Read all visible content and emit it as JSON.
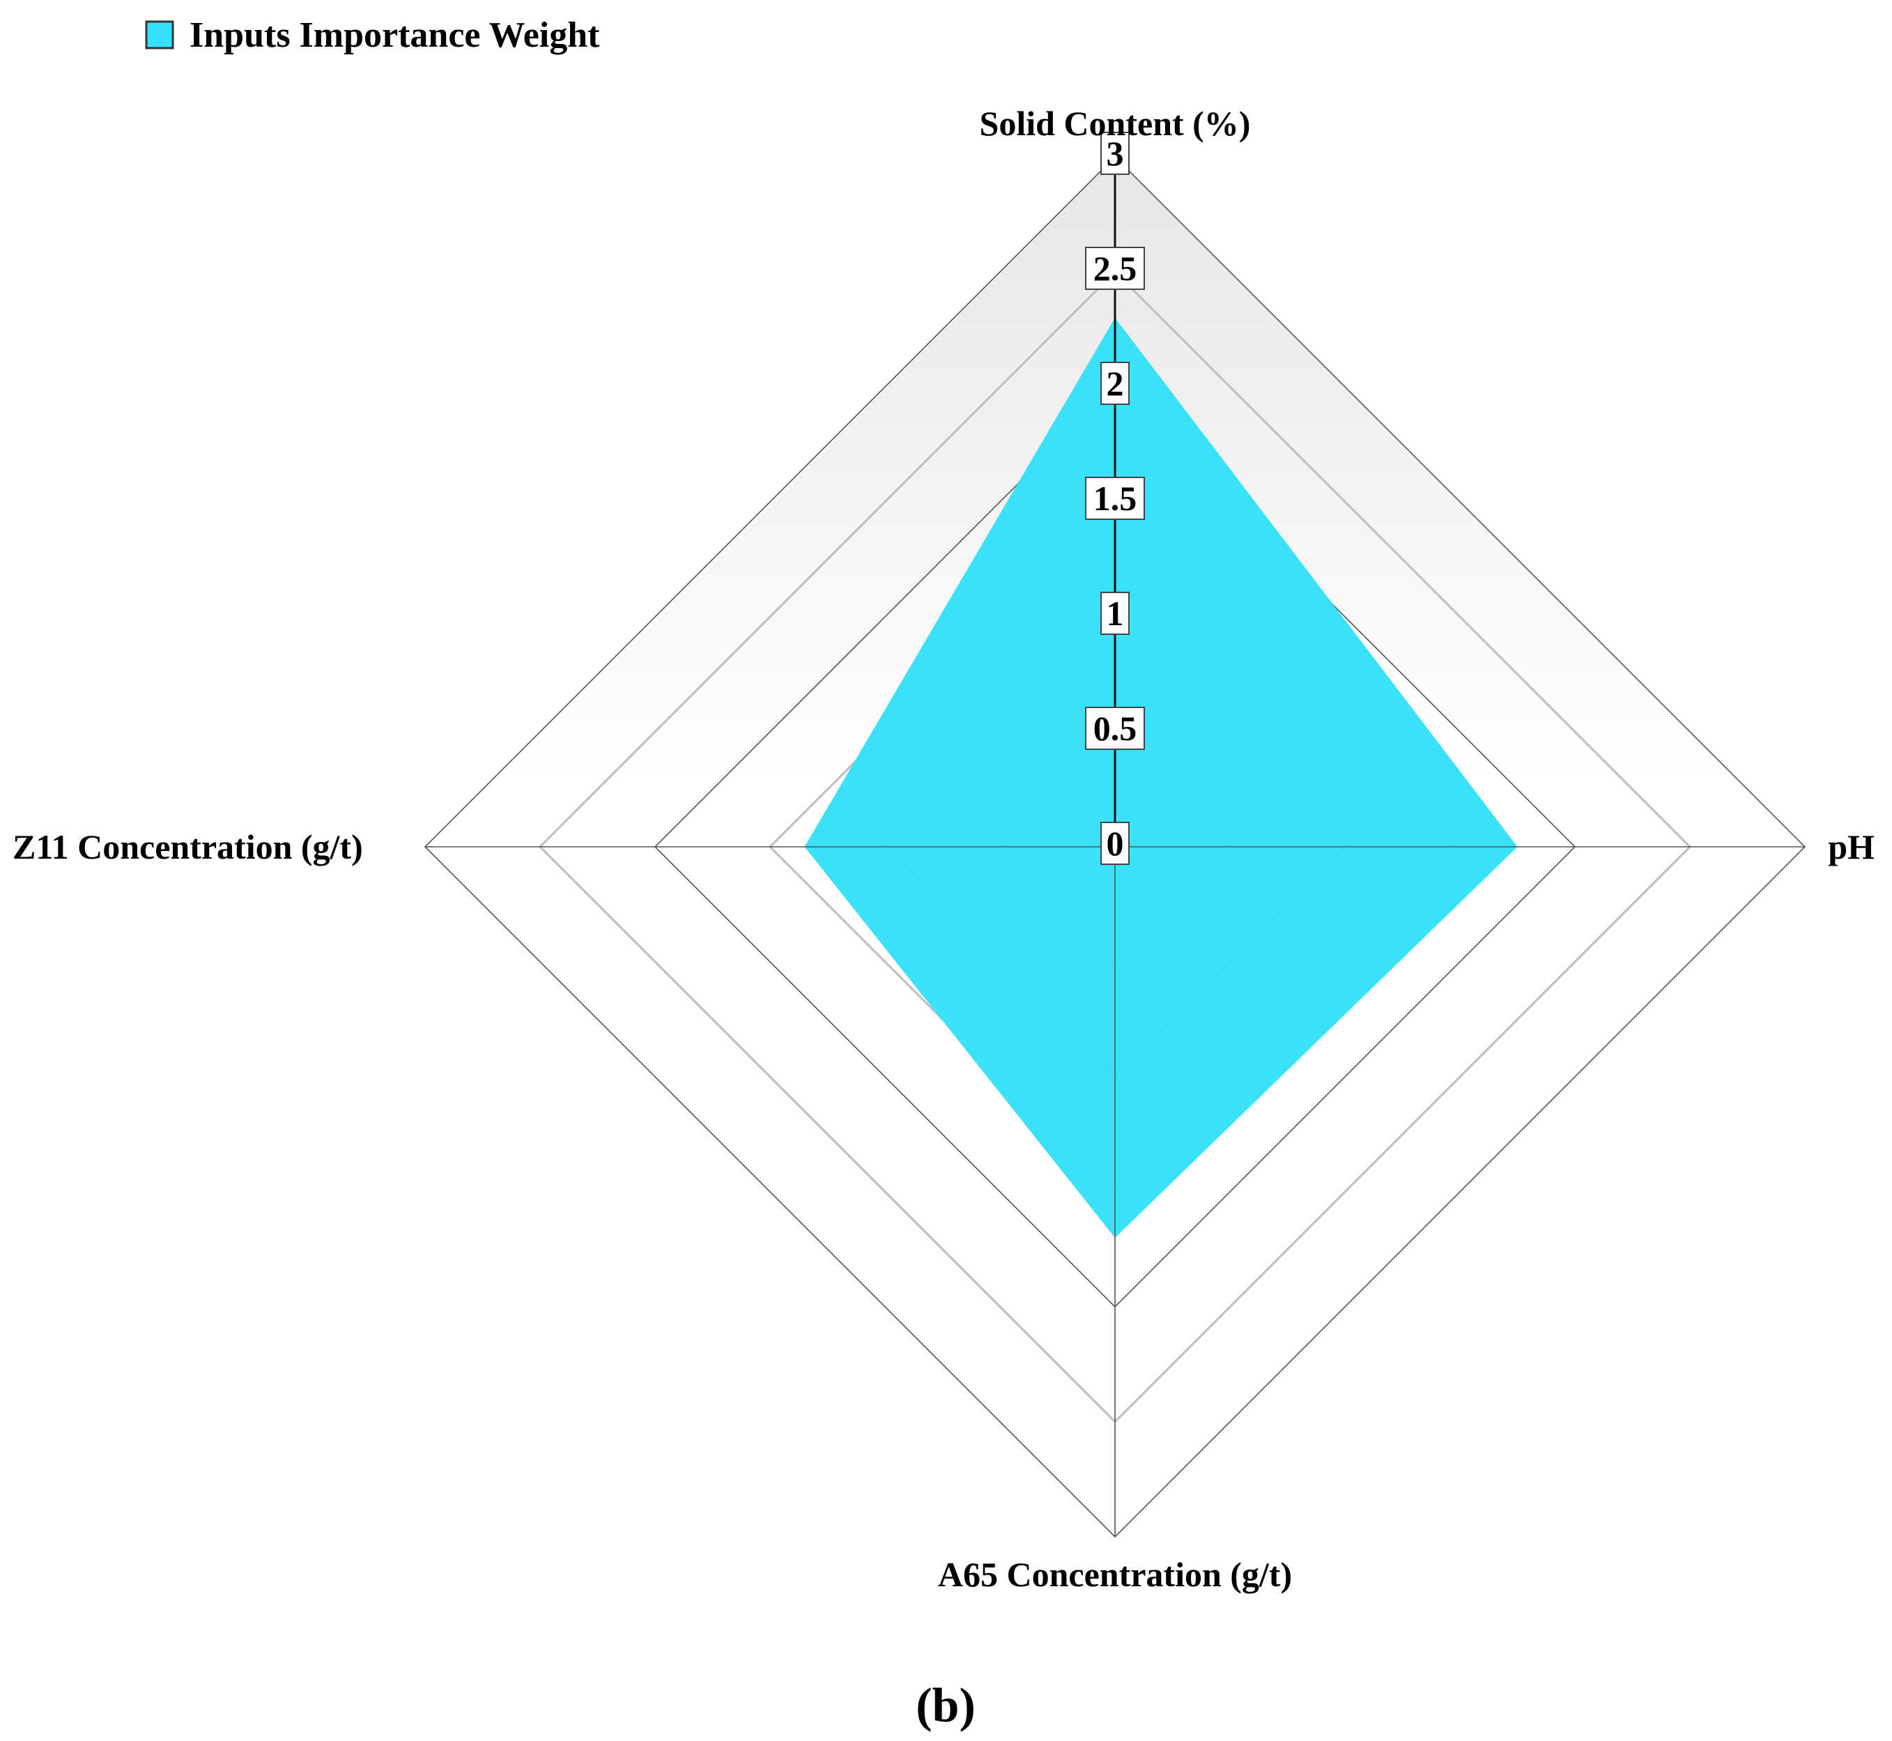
{
  "chart_data": {
    "type": "radar",
    "title": "",
    "axes": [
      "Solid Content (%)",
      "pH",
      "A65 Concentration (g/t)",
      "Z11 Concentration (g/t)"
    ],
    "ticks": [
      "0",
      "0.5",
      "1",
      "1.5",
      "2",
      "2.5",
      "3"
    ],
    "tick_values": [
      0,
      0.5,
      1,
      1.5,
      2,
      2.5,
      3
    ],
    "range": [
      0,
      3
    ],
    "series": [
      {
        "name": "Inputs Importance Weight",
        "values": [
          2.3,
          1.75,
          1.7,
          1.35
        ],
        "color": "#33E0FA"
      }
    ],
    "legend_position": "top-left",
    "grid": true,
    "panel_label": "(b)"
  }
}
